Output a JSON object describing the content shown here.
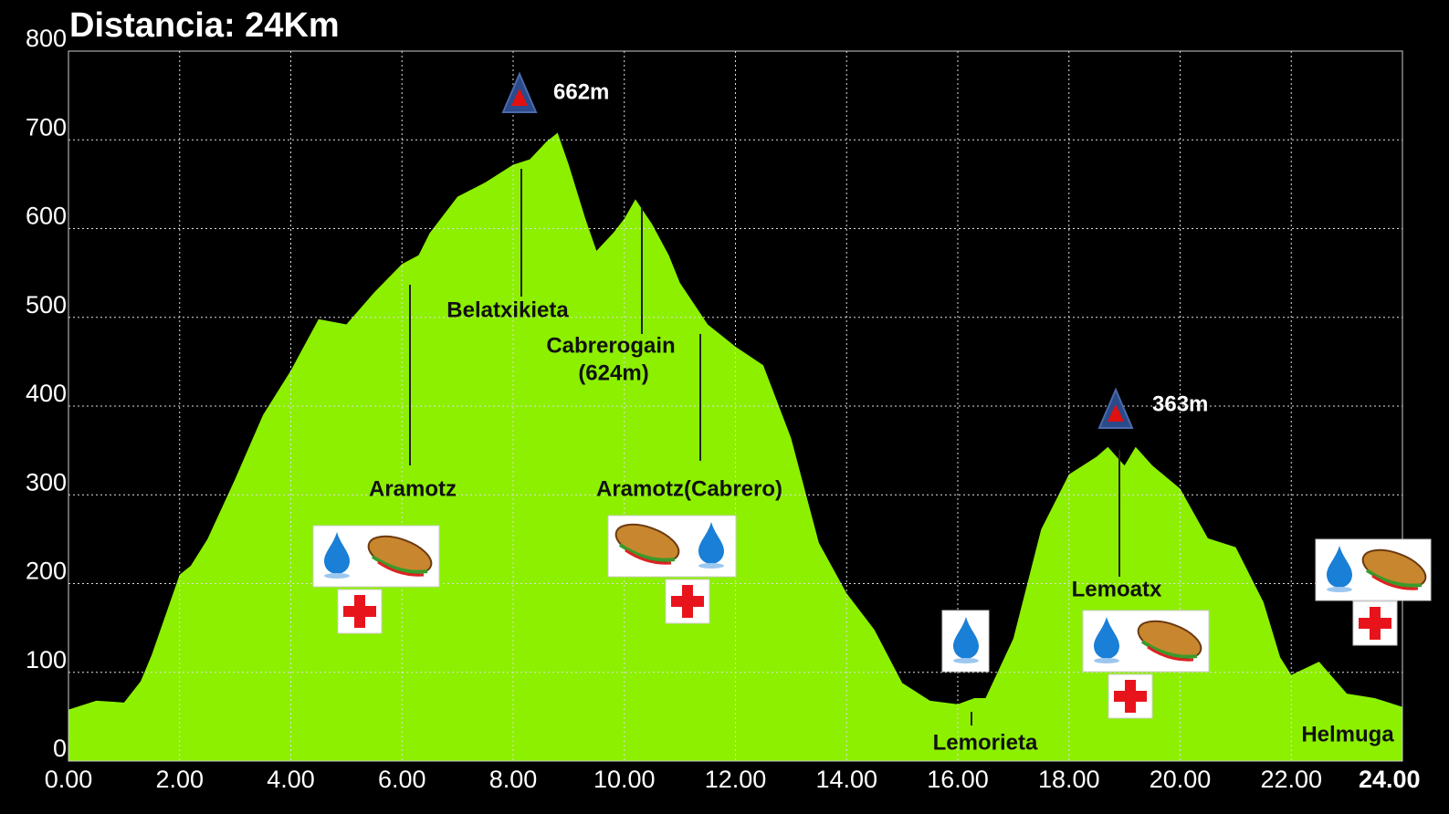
{
  "chart_data": {
    "type": "area",
    "title": "Distancia: 24Km",
    "x": [
      0,
      0.5,
      1.0,
      1.3,
      1.5,
      2.0,
      2.2,
      2.5,
      3.0,
      3.5,
      4.0,
      4.5,
      5.0,
      5.5,
      6.0,
      6.3,
      6.5,
      7.0,
      7.5,
      8.0,
      8.3,
      8.6,
      8.8,
      9.0,
      9.3,
      9.5,
      9.8,
      10.0,
      10.2,
      10.5,
      10.8,
      11.0,
      11.5,
      12.0,
      12.5,
      13.0,
      13.5,
      14.0,
      14.5,
      15.0,
      15.5,
      16.0,
      16.3,
      16.5,
      17.0,
      17.5,
      18.0,
      18.5,
      18.7,
      19.0,
      19.2,
      19.5,
      20.0,
      20.5,
      21.0,
      21.5,
      21.8,
      22.0,
      22.5,
      23.0,
      23.5,
      24.0
    ],
    "values": [
      58,
      68,
      66,
      90,
      120,
      210,
      220,
      250,
      318,
      390,
      440,
      498,
      492,
      528,
      560,
      570,
      595,
      636,
      652,
      672,
      678,
      698,
      708,
      672,
      611,
      575,
      595,
      611,
      633,
      605,
      570,
      539,
      492,
      467,
      446,
      364,
      246,
      189,
      148,
      88,
      68,
      64,
      71,
      71,
      138,
      261,
      323,
      343,
      354,
      333,
      354,
      333,
      307,
      251,
      241,
      179,
      117,
      97,
      112,
      76,
      71,
      61
    ],
    "color": "#8cf000",
    "xlim": [
      0,
      24
    ],
    "xticks": [
      {
        "value": 0,
        "label": "0.00"
      },
      {
        "value": 2,
        "label": "2.00"
      },
      {
        "value": 4,
        "label": "4.00"
      },
      {
        "value": 6,
        "label": "6.00"
      },
      {
        "value": 8,
        "label": "8.00"
      },
      {
        "value": 10,
        "label": "10.00"
      },
      {
        "value": 12,
        "label": "12.00"
      },
      {
        "value": 14,
        "label": "14.00"
      },
      {
        "value": 16,
        "label": "16.00"
      },
      {
        "value": 18,
        "label": "18.00"
      },
      {
        "value": 20,
        "label": "20.00"
      },
      {
        "value": 22,
        "label": "22.00"
      },
      {
        "value": 24,
        "label": "24.00"
      }
    ],
    "ylim": [
      0,
      800
    ],
    "yticks": [
      0,
      100,
      200,
      300,
      400,
      500,
      600,
      700,
      800
    ],
    "grid": true,
    "annotations": [
      "662m",
      "363m",
      "Belatxikieta",
      "Cabrerogain",
      "(624m)",
      "Aramotz",
      "Aramotz(Cabrero)",
      "Lemorieta",
      "Lemoatx",
      "Helmuga"
    ]
  }
}
